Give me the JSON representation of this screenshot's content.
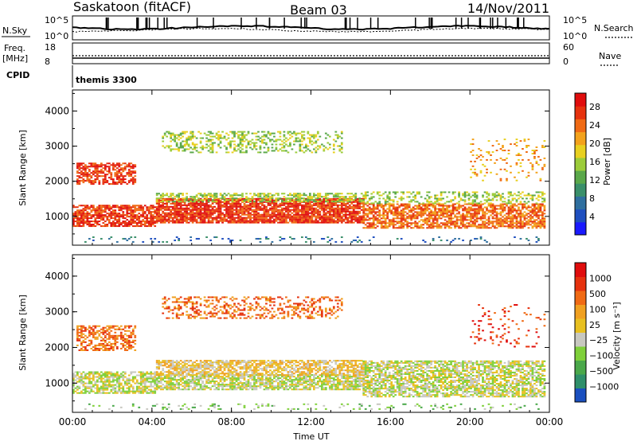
{
  "header": {
    "station": "Saskatoon (fitACF)",
    "beam": "Beam 03",
    "date": "14/Nov/2011"
  },
  "strip": {
    "nsky_label": "N.Sky",
    "nsearch_label": "N.Search",
    "nsky_ticks": [
      "10^5",
      "10^0"
    ],
    "nsearch_ticks": [
      "10^5",
      "10^0"
    ],
    "freq_label_1": "Freq.",
    "freq_label_2": "[MHz]",
    "freq_ticks": [
      "18",
      "8"
    ],
    "nave_label": "Nave",
    "nave_ticks": [
      "60",
      "0"
    ],
    "cpid_label": "CPID",
    "cpid_value": "themis 3300"
  },
  "chart_data": [
    {
      "type": "heatmap",
      "name": "power",
      "ylabel": "Slant Range [km]",
      "xlabel": "",
      "x_ticks": [
        "00:00",
        "04:00",
        "08:00",
        "12:00",
        "16:00",
        "20:00",
        "00:00"
      ],
      "y_ticks": [
        "1000",
        "2000",
        "3000",
        "4000"
      ],
      "xlim_hours": [
        0,
        24
      ],
      "ylim_km": [
        180,
        4600
      ],
      "colorbar": {
        "label": "Power [dB]",
        "ticks": [
          "4",
          "8",
          "12",
          "16",
          "20",
          "24",
          "28"
        ],
        "range": [
          0,
          30
        ],
        "colors": [
          "#1a1aff",
          "#1f4fbf",
          "#2f6f9f",
          "#3a8f6a",
          "#5aa84a",
          "#9ccc3a",
          "#e8d020",
          "#f3a21c",
          "#f06a14",
          "#e6320e",
          "#e00d0d"
        ]
      }
    },
    {
      "type": "heatmap",
      "name": "velocity",
      "ylabel": "Slant Range [km]",
      "xlabel": "Time UT",
      "x_ticks": [
        "00:00",
        "04:00",
        "08:00",
        "12:00",
        "16:00",
        "20:00",
        "00:00"
      ],
      "y_ticks": [
        "1000",
        "2000",
        "3000",
        "4000"
      ],
      "xlim_hours": [
        0,
        24
      ],
      "ylim_km": [
        180,
        4600
      ],
      "colorbar": {
        "label": "Velocity [m s⁻¹]",
        "ticks": [
          "1000",
          "500",
          "100",
          "25",
          "−25",
          "−100",
          "−500",
          "−1000"
        ],
        "colors": [
          "#1a4fbf",
          "#2f8f6a",
          "#4aa84a",
          "#7fd03a",
          "#c8c8c0",
          "#e8c020",
          "#f0a020",
          "#f06a14",
          "#e6320e",
          "#e00d0d"
        ]
      }
    }
  ]
}
